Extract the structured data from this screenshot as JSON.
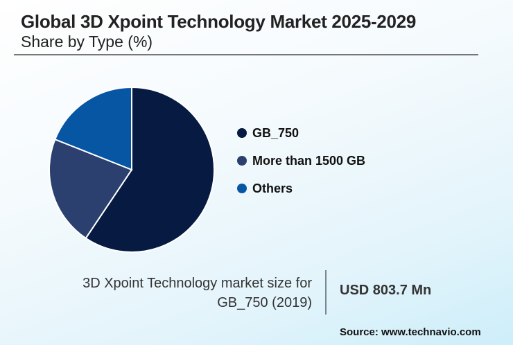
{
  "header": {
    "title": "Global 3D Xpoint Technology Market 2025-2029",
    "subtitle": "Share by Type (%)"
  },
  "chart_data": {
    "type": "pie",
    "title": "Global 3D Xpoint Technology Market 2025-2029",
    "subtitle": "Share by Type (%)",
    "start_angle": "12 o'clock, clockwise",
    "legend_position": "right",
    "slices": [
      {
        "label": "GB_750",
        "value": 59.4,
        "color": "#061a42"
      },
      {
        "label": "More than 1500 GB",
        "value": 21.6,
        "color": "#2c4070"
      },
      {
        "label": "Others",
        "value": 19.0,
        "color": "#0756a3"
      }
    ]
  },
  "footer": {
    "size_label_line1": "3D Xpoint Technology market size for",
    "size_label_line2": "GB_750 (2019)",
    "size_value": "USD 803.7 Mn",
    "source": "Source: www.technavio.com"
  }
}
